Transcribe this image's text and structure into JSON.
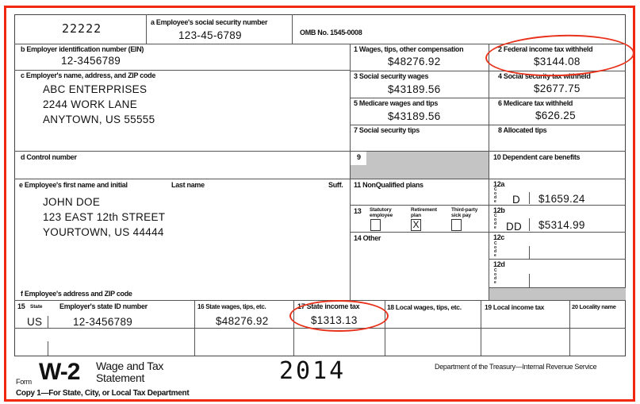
{
  "form_control": "22222",
  "box_a": {
    "label": "a  Employee's social security number",
    "value": "123-45-6789"
  },
  "omb": "OMB No. 1545-0008",
  "box_b": {
    "label": "b  Employer identification number (EIN)",
    "value": "12-3456789"
  },
  "box_c": {
    "label": "c  Employer's name, address, and ZIP code",
    "lines": [
      "ABC ENTERPRISES",
      "2244 WORK LANE",
      "ANYTOWN, US  55555"
    ]
  },
  "box_d": {
    "label": "d  Control number"
  },
  "box_e": {
    "label": "e  Employee's first name and initial",
    "last_label": "Last name",
    "suff_label": "Suff.",
    "lines": [
      "JOHN DOE",
      "123 EAST 12th STREET",
      "YOURTOWN, US 44444"
    ]
  },
  "box_f": {
    "label": "f  Employee's address and ZIP code"
  },
  "boxes": {
    "b1": {
      "label": "1   Wages, tips, other compensation",
      "value": "$48276.92"
    },
    "b2": {
      "label": "2   Federal income tax withheld",
      "value": "$3144.08"
    },
    "b3": {
      "label": "3   Social security wages",
      "value": "$43189.56"
    },
    "b4": {
      "label": "4   Social security tax withheld",
      "value": "$2677.75"
    },
    "b5": {
      "label": "5   Medicare wages and tips",
      "value": "$43189.56"
    },
    "b6": {
      "label": "6   Medicare tax withheld",
      "value": "$626.25"
    },
    "b7": {
      "label": "7   Social security tips"
    },
    "b8": {
      "label": "8   Allocated tips"
    },
    "b9": {
      "label": "9"
    },
    "b10": {
      "label": "10   Dependent care benefits"
    },
    "b11": {
      "label": "11   NonQualified plans"
    },
    "b13": {
      "label": "13",
      "statutory": "Statutory employee",
      "retirement": "Retirement plan",
      "third_party": "Third-party sick pay",
      "retirement_mark": "X"
    },
    "b14": {
      "label": "14  Other"
    },
    "b12a": {
      "label": "12a",
      "code": "D",
      "value": "$1659.24"
    },
    "b12b": {
      "label": "12b",
      "code": "DD",
      "value": "$5314.99"
    },
    "b12c": {
      "label": "12c"
    },
    "b12d": {
      "label": "12d"
    },
    "code_text": "Code"
  },
  "state_row": {
    "b15_label": "15",
    "state_word": "State",
    "employer_state_id_label": "Employer's state ID number",
    "b16_label": "16  State wages, tips, etc.",
    "b17_label": "17  State income tax",
    "b18_label": "18  Local wages, tips, etc.",
    "b19_label": "19  Local income tax",
    "b20_label": "20  Locality name",
    "state": "US",
    "state_id": "12-3456789",
    "state_wages": "$48276.92",
    "state_tax": "$1313.13"
  },
  "footer": {
    "form_word": "Form",
    "form_name": "W-2",
    "title1": "Wage and Tax",
    "title2": "Statement",
    "year": "2014",
    "dept": "Department of the Treasury—Internal Revenue Service",
    "copy": "Copy 1—For State, City, or Local Tax Department"
  },
  "colors": {
    "annotation": "#e8321c",
    "frame": "#f0280f",
    "shade": "#c4c4c4"
  }
}
